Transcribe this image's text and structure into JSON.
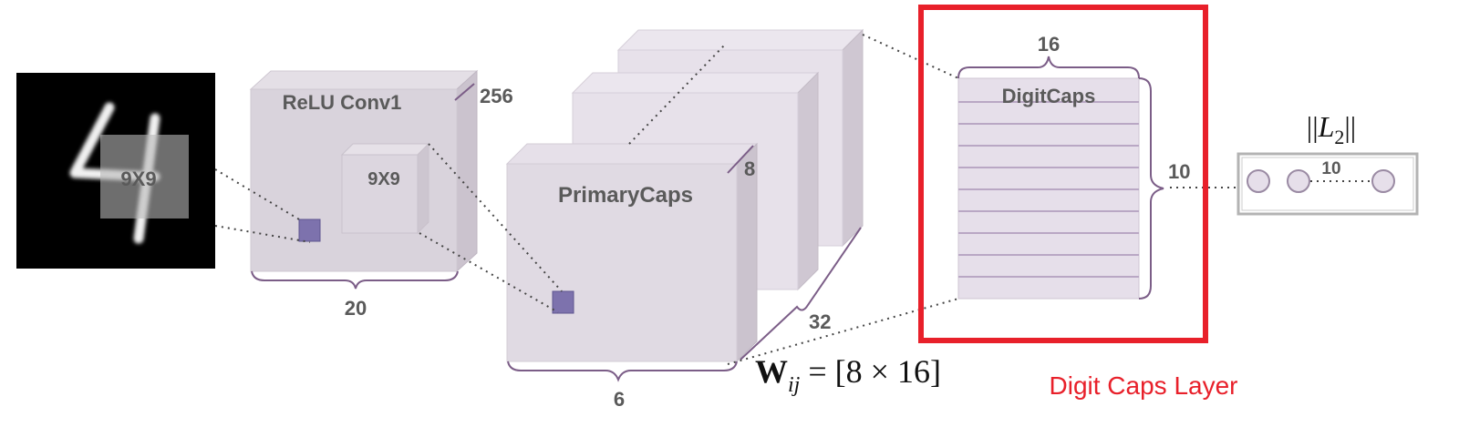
{
  "diagram": {
    "input": {
      "digit": "4",
      "kernel_label": "9X9"
    },
    "conv1": {
      "title": "ReLU Conv1",
      "kernel_label": "9X9",
      "depth": "256",
      "width": "20"
    },
    "primary_caps": {
      "title": "PrimaryCaps",
      "depth": "8",
      "channels": "32",
      "width": "6"
    },
    "weight_eq": {
      "bold": "W",
      "sub": "ij",
      "rhs": " = [8 × 16]"
    },
    "digit_caps": {
      "title": "DigitCaps",
      "width": "16",
      "rows": "10"
    },
    "output": {
      "norm_prefix": "||",
      "norm_var": "L",
      "norm_sub": "2",
      "norm_suffix": "||",
      "count": "10"
    },
    "highlight": {
      "caption": "Digit Caps Layer",
      "color": "#e8202a"
    }
  }
}
